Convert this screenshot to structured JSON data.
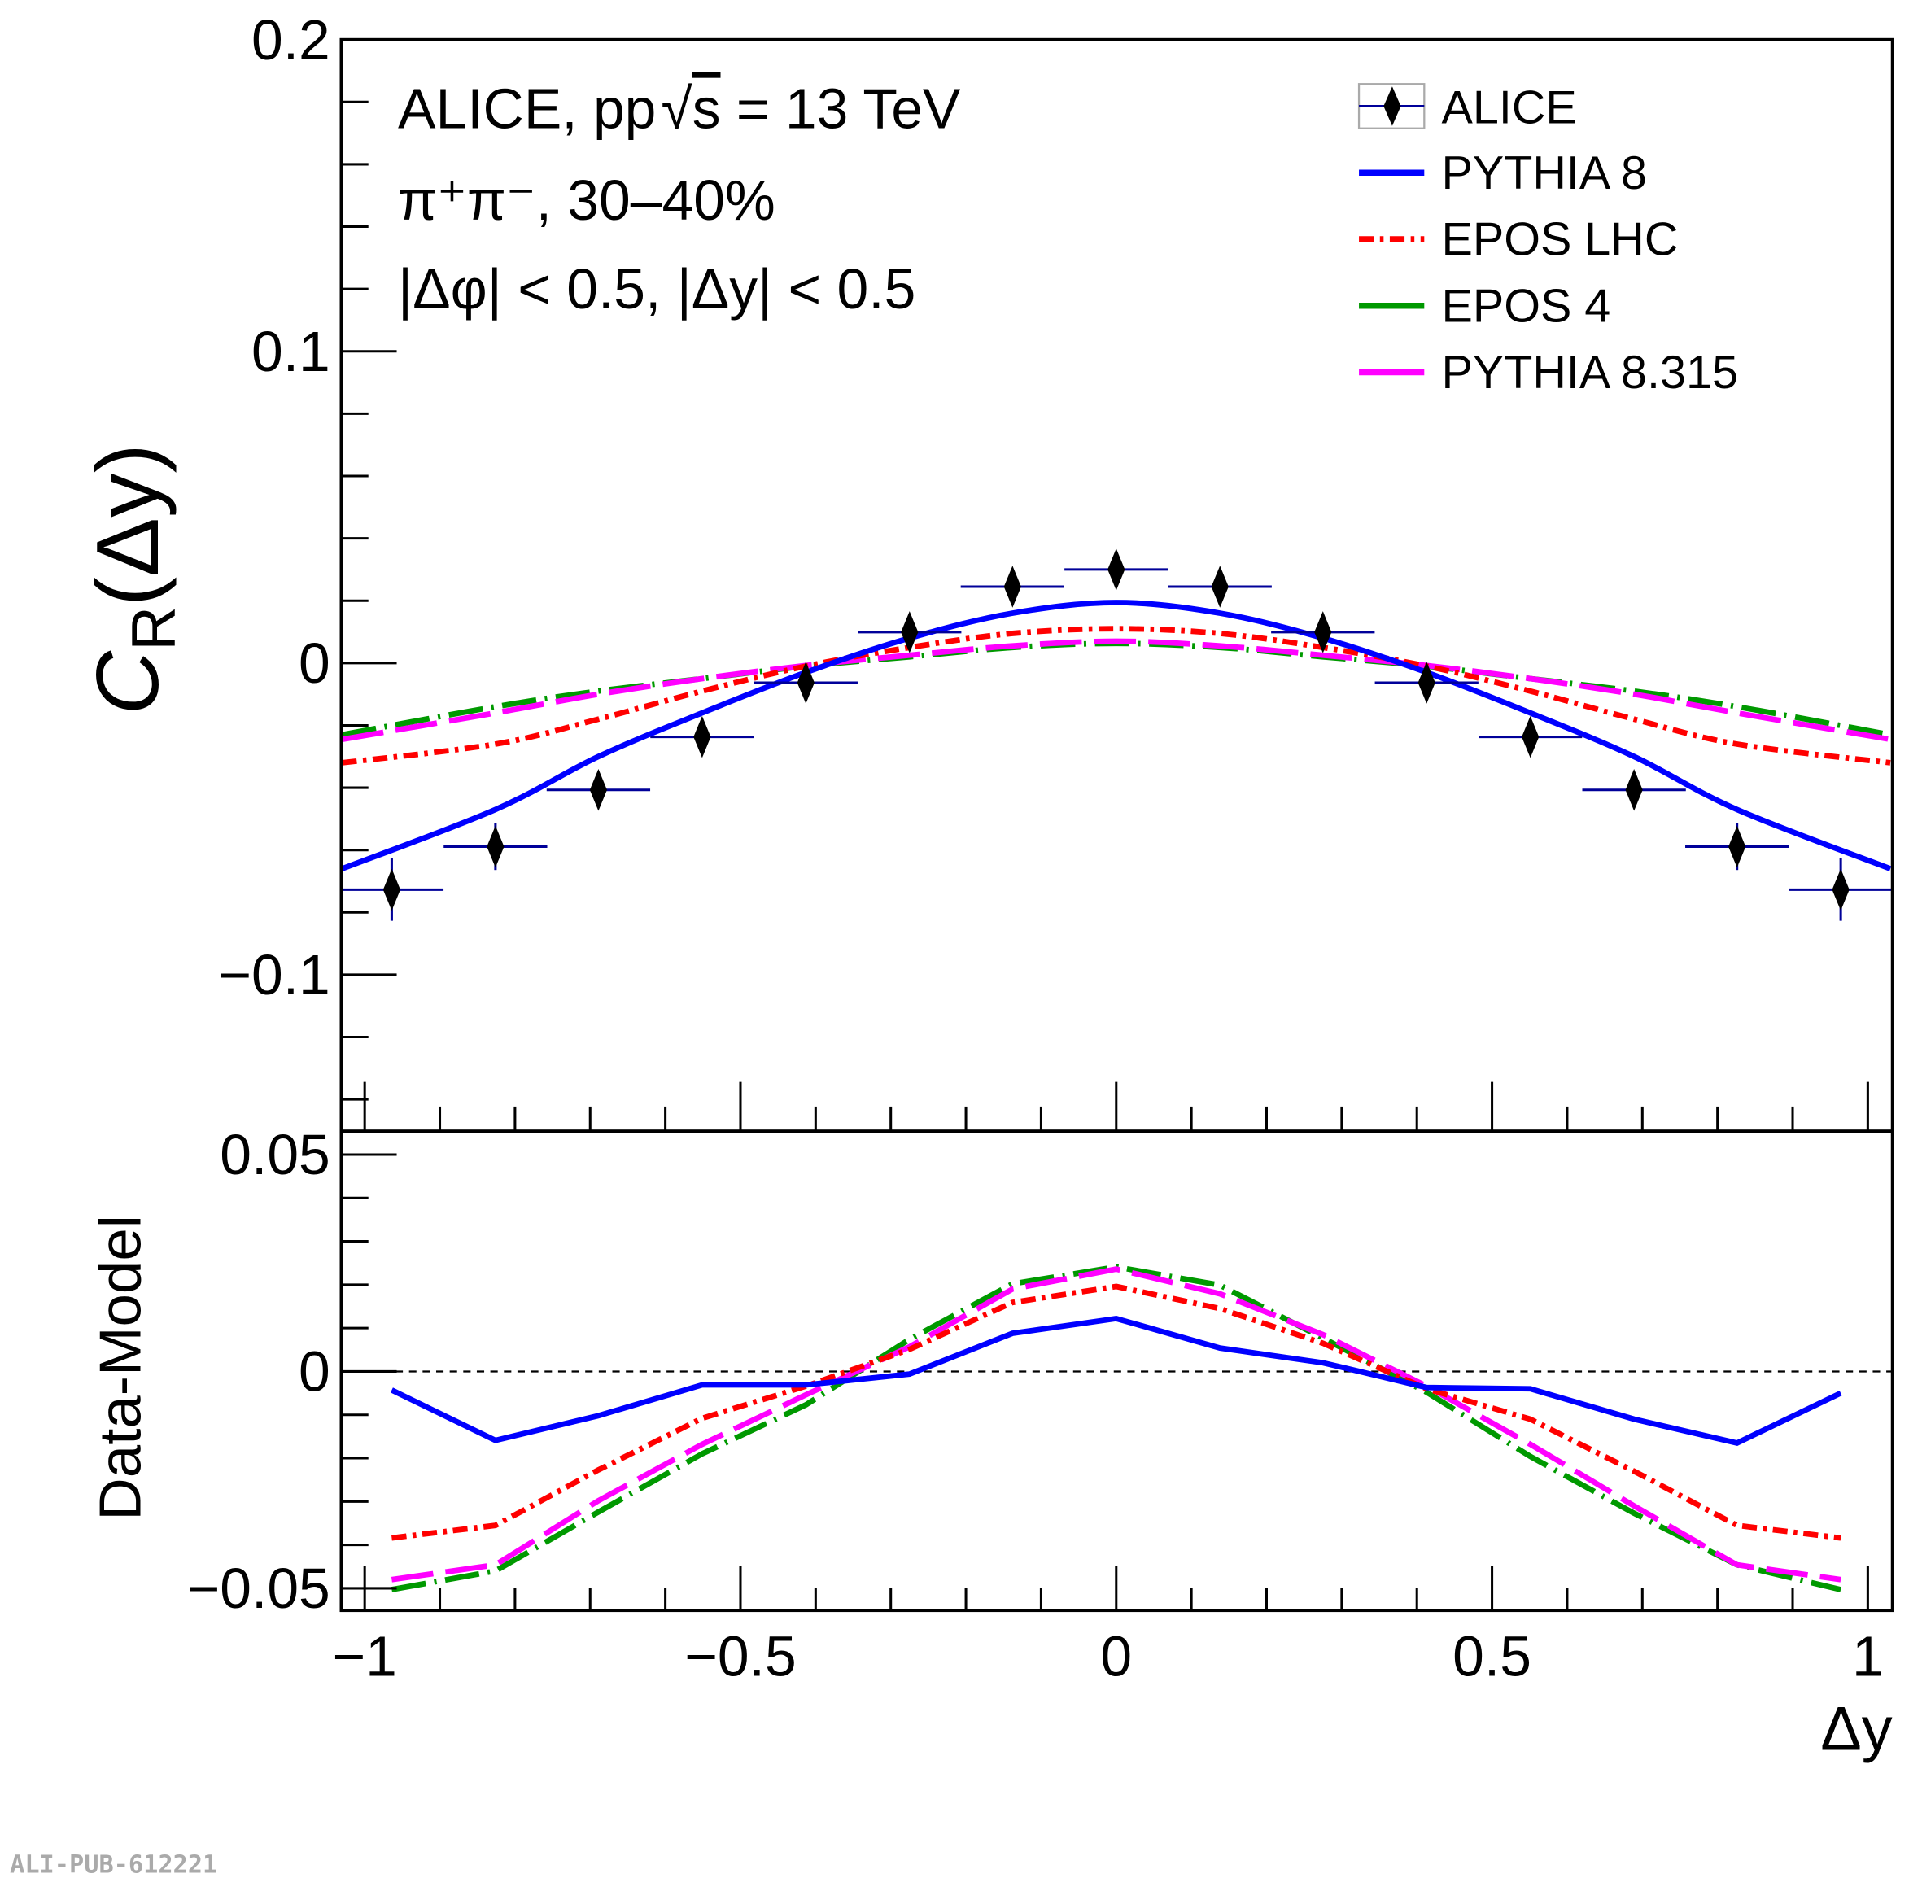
{
  "header": {
    "line1_prefix": "ALICE, pp",
    "line1_sqrt": "√",
    "line1_s": "s",
    "line1_suffix": " = 13 TeV",
    "line2": "π⁺π⁻, 30–40%",
    "line3": "|Δφ| < 0.5, |Δy| < 0.5"
  },
  "footer": "ALI-PUB-612221",
  "colors": {
    "data": "#000000",
    "errorbar": "#000099",
    "pythia8": "#0000ff",
    "epos_lhc": "#ff0000",
    "epos4": "#009900",
    "pythia8315": "#ff00ff"
  },
  "chart_data": [
    {
      "type": "line",
      "panel": "upper",
      "ylabel_main": "C",
      "ylabel_sub": "R",
      "ylabel_arg": "(Δy)",
      "xlim": [
        -1.03,
        1.03
      ],
      "ylim": [
        -0.15,
        0.2
      ],
      "yticks": [
        -0.1,
        0,
        0.1,
        0.2
      ],
      "ytick_labels": [
        "−0.1",
        "0",
        "0.1",
        "0.2"
      ],
      "legend_position": "top-right",
      "legend": [
        "ALICE",
        "PYTHIA 8",
        "EPOS LHC",
        "EPOS 4",
        "PYTHIA 8.315"
      ],
      "data_points": {
        "name": "ALICE",
        "x": [
          -0.964,
          -0.826,
          -0.689,
          -0.551,
          -0.413,
          -0.275,
          -0.138,
          0,
          0.138,
          0.275,
          0.413,
          0.551,
          0.689,
          0.826,
          0.964
        ],
        "y": [
          -0.0727,
          -0.0589,
          -0.0407,
          -0.0237,
          -0.0063,
          0.0099,
          0.0245,
          0.03,
          0.0245,
          0.0099,
          -0.0063,
          -0.0237,
          -0.0407,
          -0.0589,
          -0.0727
        ],
        "xerr": 0.0689,
        "yerr": [
          0.01,
          0.0075,
          0.005,
          0.002,
          0.002,
          0.002,
          0.002,
          0.002,
          0.002,
          0.002,
          0.002,
          0.002,
          0.005,
          0.0075,
          0.01
        ]
      },
      "x": [
        -1.03,
        -0.826,
        -0.689,
        -0.551,
        -0.413,
        -0.275,
        -0.138,
        0,
        0.138,
        0.275,
        0.413,
        0.551,
        0.689,
        0.826,
        1.03
      ],
      "series": [
        {
          "name": "PYTHIA 8",
          "values": [
            -0.066,
            -0.047,
            -0.03,
            -0.016,
            -0.003,
            0.008,
            0.016,
            0.0194,
            0.016,
            0.008,
            -0.003,
            -0.016,
            -0.03,
            -0.047,
            -0.066
          ]
        },
        {
          "name": "EPOS LHC",
          "values": [
            -0.032,
            -0.026,
            -0.018,
            -0.009,
            -0.001,
            0.005,
            0.0095,
            0.011,
            0.0095,
            0.005,
            -0.001,
            -0.009,
            -0.018,
            -0.026,
            -0.032
          ]
        },
        {
          "name": "EPOS 4",
          "values": [
            -0.023,
            -0.014,
            -0.009,
            -0.005,
            -0.001,
            0.002,
            0.005,
            0.0063,
            0.005,
            0.002,
            -0.001,
            -0.005,
            -0.009,
            -0.014,
            -0.023
          ]
        },
        {
          "name": "PYTHIA 8.315",
          "values": [
            -0.0245,
            -0.016,
            -0.01,
            -0.005,
            -0.0008,
            0.0025,
            0.0055,
            0.007,
            0.0055,
            0.0025,
            -0.0008,
            -0.005,
            -0.01,
            -0.016,
            -0.0245
          ]
        }
      ]
    },
    {
      "type": "line",
      "panel": "lower",
      "ylabel": "Data-Model",
      "xlabel": "Δy",
      "xlim": [
        -1.03,
        1.03
      ],
      "ylim": [
        -0.055,
        0.055
      ],
      "yticks": [
        -0.05,
        0,
        0.05
      ],
      "ytick_labels": [
        "−0.05",
        "0",
        "0.05"
      ],
      "xticks": [
        -1,
        -0.5,
        0,
        0.5,
        1
      ],
      "xtick_labels": [
        "−1",
        "−0.5",
        "0",
        "0.5",
        "1"
      ],
      "reference_line": 0,
      "x": [
        -0.964,
        -0.826,
        -0.689,
        -0.551,
        -0.413,
        -0.275,
        -0.138,
        0,
        0.138,
        0.275,
        0.413,
        0.551,
        0.689,
        0.826,
        0.964
      ],
      "series": [
        {
          "name": "PYTHIA 8",
          "values": [
            -0.0043,
            -0.0159,
            -0.0102,
            -0.0031,
            -0.0031,
            -0.0006,
            0.0088,
            0.0122,
            0.0054,
            0.002,
            -0.0037,
            -0.004,
            -0.011,
            -0.0165,
            -0.005
          ]
        },
        {
          "name": "EPOS LHC",
          "values": [
            -0.0384,
            -0.0355,
            -0.0227,
            -0.0108,
            -0.0034,
            0.0051,
            0.0159,
            0.0196,
            0.0145,
            0.0065,
            -0.004,
            -0.011,
            -0.023,
            -0.0355,
            -0.0384
          ]
        },
        {
          "name": "EPOS 4",
          "values": [
            -0.0503,
            -0.046,
            -0.0324,
            -0.019,
            -0.0077,
            0.0074,
            0.0202,
            0.0241,
            0.0199,
            0.0077,
            -0.0048,
            -0.0196,
            -0.0327,
            -0.0446,
            -0.0503
          ]
        },
        {
          "name": "PYTHIA 8.315",
          "values": [
            -0.048,
            -0.0446,
            -0.0298,
            -0.0168,
            -0.0054,
            0.0057,
            0.019,
            0.0236,
            0.0179,
            0.0085,
            -0.0034,
            -0.0168,
            -0.031,
            -0.0446,
            -0.048
          ]
        }
      ]
    }
  ]
}
